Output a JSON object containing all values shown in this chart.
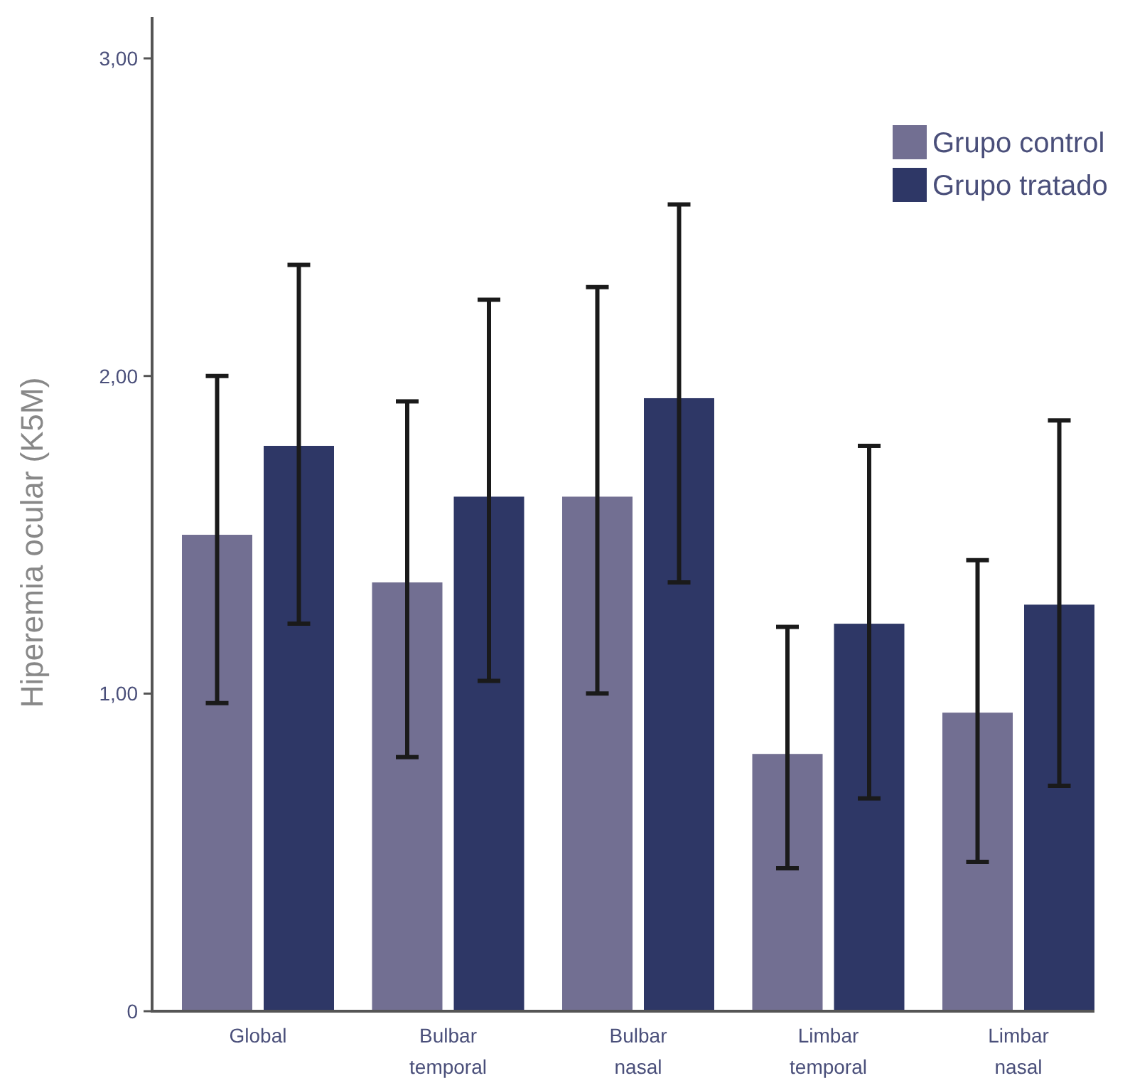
{
  "chart_data": {
    "type": "bar",
    "ylabel": "Hiperemia ocular (K5M)",
    "categories": [
      "Global",
      "Bulbar temporal",
      "Bulbar nasal",
      "Limbar temporal",
      "Limbar nasal"
    ],
    "series": [
      {
        "name": "Grupo control",
        "color": "#726f92",
        "values": [
          1.5,
          1.35,
          1.62,
          0.81,
          0.94
        ],
        "errors": [
          [
            0.97,
            2.0
          ],
          [
            0.8,
            1.92
          ],
          [
            1.0,
            2.28
          ],
          [
            0.45,
            1.21
          ],
          [
            0.47,
            1.42
          ]
        ]
      },
      {
        "name": "Grupo tratado",
        "color": "#2e3766",
        "values": [
          1.78,
          1.62,
          1.93,
          1.22,
          1.28
        ],
        "errors": [
          [
            1.22,
            2.35
          ],
          [
            1.04,
            2.24
          ],
          [
            1.35,
            2.54
          ],
          [
            0.67,
            1.78
          ],
          [
            0.71,
            1.86
          ]
        ]
      }
    ],
    "ylim": [
      0,
      3.13
    ],
    "yticks": [
      0,
      {
        "value": 1,
        "label": "1,00"
      },
      {
        "value": 2,
        "label": "2,00"
      },
      {
        "value": 3,
        "label": "3,00"
      }
    ],
    "grid": false,
    "legend": "top right"
  }
}
